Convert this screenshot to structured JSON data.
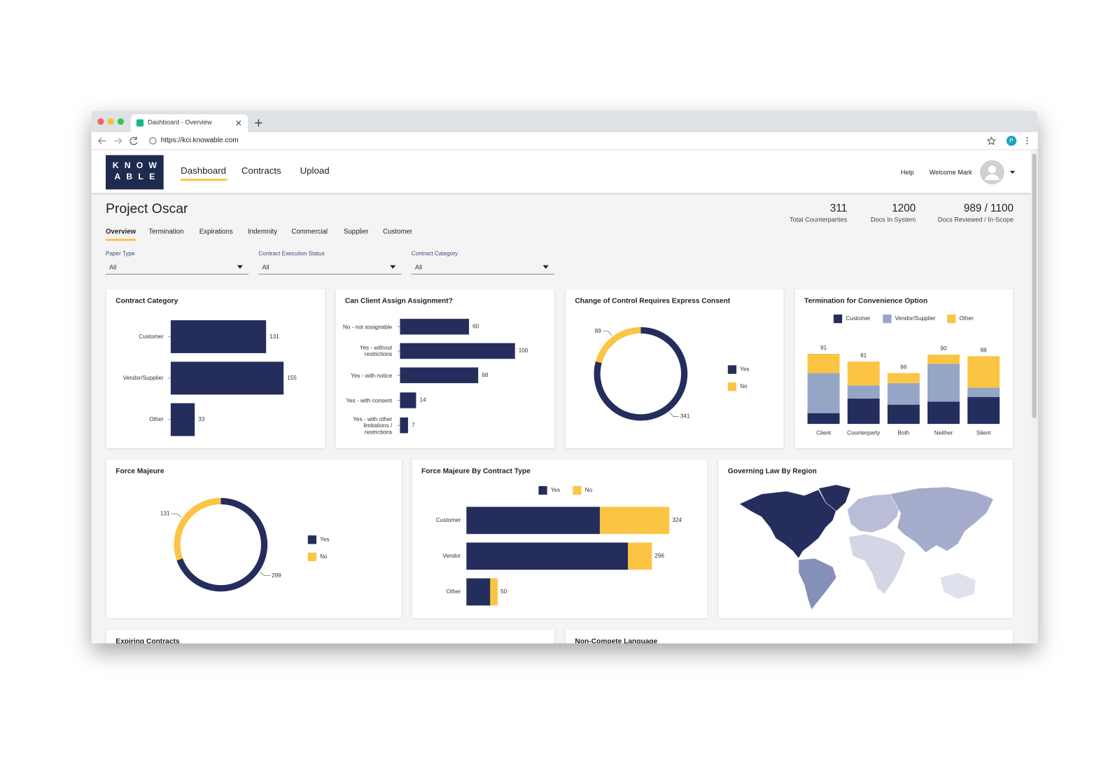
{
  "browser": {
    "tab_title": "Dashboard - Overview",
    "url": "https://kci.knowable.com",
    "profile_initial": "P"
  },
  "header": {
    "logo": [
      "KNOW",
      "ABLE"
    ],
    "nav": [
      "Dashboard",
      "Contracts",
      "Upload"
    ],
    "help": "Help",
    "welcome": "Welcome Mark"
  },
  "project": {
    "title": "Project Oscar",
    "stats": [
      {
        "value": 311,
        "label": "Total Counterparties"
      },
      {
        "value": 1200,
        "label": "Docs In System"
      },
      {
        "value": "989 / 1100",
        "label": "Docs Reviewed / In-Scope"
      }
    ],
    "tabs": [
      "Overview",
      "Termination",
      "Expirations",
      "Indemnity",
      "Commercial",
      "Supplier",
      "Customer"
    ],
    "filters": [
      {
        "label": "Paper Type",
        "value": "All"
      },
      {
        "label": "Contract Execution Status",
        "value": "All"
      },
      {
        "label": "Contract Category",
        "value": "All"
      }
    ]
  },
  "chart_data": [
    {
      "type": "bar",
      "orientation": "horizontal",
      "title": "Contract Category",
      "categories": [
        "Customer",
        "Vendor/Supplier",
        "Other"
      ],
      "values": [
        131,
        155,
        33
      ],
      "color": "#252d5c"
    },
    {
      "type": "bar",
      "orientation": "horizontal",
      "title": "Can Client Assign Assignment?",
      "categories": [
        "No - not assignable",
        "Yes - without restrictions",
        "Yes - with notice",
        "Yes - with consent",
        "Yes - with other limitations / restrictions"
      ],
      "values": [
        60,
        100,
        68,
        14,
        7
      ],
      "color": "#252d5c"
    },
    {
      "type": "donut",
      "title": "Change of Control Requires Express Consent",
      "categories": [
        "Yes",
        "No"
      ],
      "values": [
        341,
        89
      ],
      "colors": [
        "#252d5c",
        "#fbc543"
      ]
    },
    {
      "type": "bar",
      "orientation": "vertical",
      "stacked": true,
      "title": "Termination for Convenience Option",
      "categories": [
        "Client",
        "Counterparty",
        "Both",
        "Neither",
        "Silent"
      ],
      "series": [
        {
          "name": "Customer",
          "color": "#252d5c",
          "values": [
            14,
            33,
            25,
            29,
            35
          ]
        },
        {
          "name": "Vendor/Supplier",
          "color": "#95a5c5",
          "values": [
            52,
            17,
            28,
            49,
            12
          ]
        },
        {
          "name": "Other",
          "color": "#fbc543",
          "values": [
            25,
            31,
            13,
            12,
            41
          ]
        }
      ],
      "totals": [
        91,
        81,
        66,
        90,
        88
      ]
    },
    {
      "type": "donut",
      "title": "Force Majeure",
      "categories": [
        "Yes",
        "No"
      ],
      "values": [
        299,
        131
      ],
      "colors": [
        "#252d5c",
        "#fbc543"
      ]
    },
    {
      "type": "bar",
      "orientation": "horizontal",
      "stacked": true,
      "title": "Force Majeure By Contract Type",
      "categories": [
        "Customer",
        "Vendor",
        "Other"
      ],
      "series": [
        {
          "name": "Yes",
          "color": "#252d5c",
          "values": [
            213,
            258,
            38
          ]
        },
        {
          "name": "No",
          "color": "#fbc543",
          "values": [
            111,
            38,
            12
          ]
        }
      ],
      "totals": [
        324,
        296,
        50
      ]
    },
    {
      "type": "map",
      "title": "Governing Law By Region"
    }
  ],
  "more_cards": [
    "Expiring Contracts",
    "Non-Compete Language"
  ]
}
